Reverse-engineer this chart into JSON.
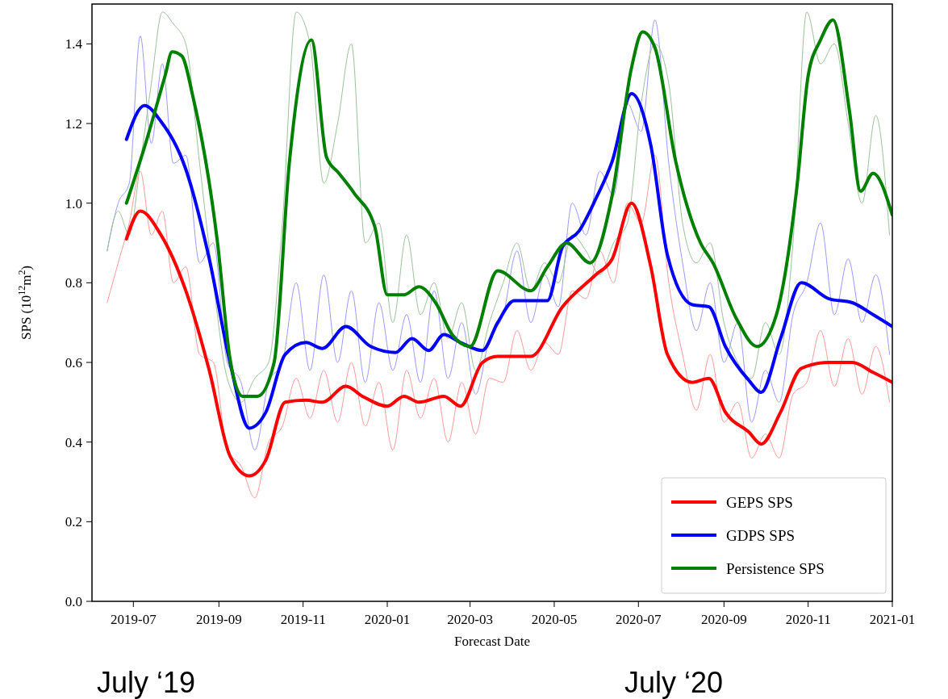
{
  "chart_data": {
    "type": "line",
    "xlabel": "Forecast Date",
    "ylabel": "SPS (10$^{12}$m$^{2}$)",
    "annotations": [
      "July ‘19",
      "July ‘20"
    ],
    "xlim": [
      "2019-06-01",
      "2021-01-01"
    ],
    "xticks": [
      "2019-07",
      "2019-09",
      "2019-11",
      "2020-01",
      "2020-03",
      "2020-05",
      "2020-07",
      "2020-09",
      "2020-11",
      "2021-01"
    ],
    "ylim": [
      0,
      1.5
    ],
    "yticks": [
      {
        "value": 0,
        "label": "0.0"
      },
      {
        "value": 0.2,
        "label": "0.2"
      },
      {
        "value": 0.4,
        "label": "0.4"
      },
      {
        "value": 0.6,
        "label": "0.6"
      },
      {
        "value": 0.8,
        "label": "0.8"
      },
      {
        "value": 1.0,
        "label": "1.0"
      },
      {
        "value": 1.2,
        "label": "1.2"
      },
      {
        "value": 1.4,
        "label": "1.4"
      }
    ],
    "grid": false,
    "legend": "bottom right",
    "line_style": "solid",
    "marker": "none",
    "x": [
      "2019-06-12",
      "2019-06-20",
      "2019-06-28",
      "2019-07-06",
      "2019-07-14",
      "2019-07-22",
      "2019-07-30",
      "2019-08-08",
      "2019-08-18",
      "2019-08-28",
      "2019-09-07",
      "2019-09-17",
      "2019-09-27",
      "2019-10-07",
      "2019-10-17",
      "2019-10-27",
      "2019-11-06",
      "2019-11-16",
      "2019-11-26",
      "2019-12-06",
      "2019-12-16",
      "2019-12-26",
      "2020-01-05",
      "2020-01-15",
      "2020-01-25",
      "2020-02-04",
      "2020-02-14",
      "2020-02-24",
      "2020-03-05",
      "2020-03-15",
      "2020-03-25",
      "2020-04-04",
      "2020-04-14",
      "2020-04-24",
      "2020-05-04",
      "2020-05-14",
      "2020-05-24",
      "2020-06-03",
      "2020-06-13",
      "2020-06-23",
      "2020-07-03",
      "2020-07-13",
      "2020-07-23",
      "2020-08-02",
      "2020-08-12",
      "2020-08-22",
      "2020-09-01",
      "2020-09-11",
      "2020-09-21",
      "2020-10-01",
      "2020-10-11",
      "2020-10-21",
      "2020-10-31",
      "2020-11-10",
      "2020-11-20",
      "2020-11-30",
      "2020-12-10",
      "2020-12-20",
      "2020-12-30"
    ],
    "series": [
      {
        "color": "#ff9a9a",
        "values": [
          0.75,
          0.85,
          0.95,
          1.08,
          0.92,
          0.98,
          0.8,
          0.84,
          0.62,
          0.6,
          0.38,
          0.34,
          0.26,
          0.4,
          0.44,
          0.56,
          0.46,
          0.58,
          0.45,
          0.6,
          0.44,
          0.55,
          0.38,
          0.58,
          0.46,
          0.56,
          0.4,
          0.55,
          0.42,
          0.56,
          0.55,
          0.68,
          0.58,
          0.65,
          0.62,
          0.78,
          0.76,
          0.88,
          0.8,
          1.0,
          0.95,
          1.12,
          0.8,
          0.62,
          0.48,
          0.62,
          0.45,
          0.5,
          0.36,
          0.42,
          0.36,
          0.52,
          0.55,
          0.68,
          0.54,
          0.66,
          0.52,
          0.64,
          0.5
        ]
      },
      {
        "color": "#9a9aff",
        "values": [
          0.88,
          1.0,
          1.05,
          1.42,
          1.15,
          1.35,
          1.1,
          1.12,
          0.85,
          0.9,
          0.6,
          0.55,
          0.38,
          0.55,
          0.6,
          0.8,
          0.58,
          0.82,
          0.6,
          0.78,
          0.55,
          0.75,
          0.58,
          0.72,
          0.55,
          0.78,
          0.56,
          0.7,
          0.52,
          0.66,
          0.72,
          0.88,
          0.7,
          0.82,
          0.74,
          1.0,
          0.92,
          1.08,
          1.02,
          1.25,
          1.18,
          1.46,
          1.1,
          0.85,
          0.68,
          0.8,
          0.6,
          0.7,
          0.45,
          0.58,
          0.5,
          0.72,
          0.8,
          0.95,
          0.72,
          0.86,
          0.7,
          0.82,
          0.62
        ]
      },
      {
        "color": "#9ac29a",
        "values": [
          0.88,
          0.98,
          0.92,
          1.1,
          1.3,
          1.48,
          1.45,
          1.4,
          1.1,
          0.8,
          0.56,
          0.5,
          0.56,
          0.6,
          0.95,
          1.48,
          1.4,
          1.05,
          1.2,
          1.4,
          0.9,
          0.95,
          0.7,
          0.92,
          0.72,
          0.8,
          0.66,
          0.75,
          0.58,
          0.7,
          0.8,
          0.9,
          0.78,
          0.85,
          0.8,
          0.92,
          0.88,
          0.82,
          0.9,
          0.95,
          1.25,
          1.4,
          1.3,
          0.95,
          0.85,
          0.9,
          0.7,
          0.6,
          0.56,
          0.7,
          0.62,
          0.9,
          1.48,
          1.35,
          1.4,
          1.2,
          1.0,
          1.22,
          0.92
        ]
      },
      {
        "name": "GEPS SPS",
        "color": "#ff0000",
        "x": [
          "2019-06-26",
          "2019-07-06",
          "2019-07-21",
          "2019-08-08",
          "2019-08-25",
          "2019-09-09",
          "2019-09-23",
          "2019-10-05",
          "2019-10-19",
          "2019-11-03",
          "2019-11-15",
          "2019-12-02",
          "2019-12-14",
          "2020-01-01",
          "2020-01-13",
          "2020-01-24",
          "2020-02-11",
          "2020-02-23",
          "2020-03-10",
          "2020-03-21",
          "2020-04-14",
          "2020-05-07",
          "2020-05-31",
          "2020-06-12",
          "2020-06-26",
          "2020-07-10",
          "2020-07-22",
          "2020-08-09",
          "2020-08-21",
          "2020-09-02",
          "2020-09-19",
          "2020-09-28",
          "2020-10-12",
          "2020-10-27",
          "2020-11-16",
          "2020-12-03",
          "2020-12-18",
          "2021-01-01"
        ],
        "values": [
          0.91,
          0.98,
          0.92,
          0.78,
          0.58,
          0.365,
          0.315,
          0.355,
          0.5,
          0.505,
          0.5,
          0.54,
          0.515,
          0.49,
          0.515,
          0.5,
          0.515,
          0.49,
          0.6,
          0.615,
          0.615,
          0.74,
          0.82,
          0.86,
          1.0,
          0.84,
          0.62,
          0.55,
          0.56,
          0.475,
          0.425,
          0.395,
          0.475,
          0.585,
          0.6,
          0.6,
          0.575,
          0.55
        ]
      },
      {
        "name": "GDPS SPS",
        "color": "#0000ff",
        "x": [
          "2019-06-26",
          "2019-07-09",
          "2019-07-21",
          "2019-08-08",
          "2019-08-25",
          "2019-09-09",
          "2019-09-23",
          "2019-10-05",
          "2019-10-19",
          "2019-11-03",
          "2019-11-15",
          "2019-12-02",
          "2019-12-20",
          "2020-01-07",
          "2020-01-19",
          "2020-01-31",
          "2020-02-11",
          "2020-02-23",
          "2020-03-10",
          "2020-03-21",
          "2020-04-02",
          "2020-04-26",
          "2020-05-07",
          "2020-05-19",
          "2020-05-31",
          "2020-06-12",
          "2020-06-26",
          "2020-07-10",
          "2020-07-22",
          "2020-08-09",
          "2020-08-21",
          "2020-09-02",
          "2020-09-19",
          "2020-09-28",
          "2020-10-12",
          "2020-10-27",
          "2020-11-16",
          "2020-12-03",
          "2020-12-18",
          "2021-01-01"
        ],
        "values": [
          1.16,
          1.245,
          1.205,
          1.085,
          0.86,
          0.6,
          0.435,
          0.475,
          0.62,
          0.65,
          0.635,
          0.69,
          0.64,
          0.625,
          0.66,
          0.63,
          0.67,
          0.65,
          0.63,
          0.7,
          0.755,
          0.755,
          0.89,
          0.93,
          1.01,
          1.105,
          1.275,
          1.145,
          0.87,
          0.745,
          0.74,
          0.64,
          0.555,
          0.525,
          0.66,
          0.8,
          0.76,
          0.75,
          0.72,
          0.69
        ]
      },
      {
        "name": "Persistence SPS",
        "color": "#008000",
        "x": [
          "2019-06-26",
          "2019-07-09",
          "2019-07-24",
          "2019-07-29",
          "2019-08-05",
          "2019-08-13",
          "2019-08-31",
          "2019-09-09",
          "2019-09-18",
          "2019-09-29",
          "2019-10-11",
          "2019-10-22",
          "2019-11-07",
          "2019-11-18",
          "2019-11-27",
          "2019-12-08",
          "2019-12-23",
          "2020-01-01",
          "2020-01-13",
          "2020-01-24",
          "2020-02-05",
          "2020-02-17",
          "2020-03-01",
          "2020-03-21",
          "2020-04-14",
          "2020-04-26",
          "2020-05-10",
          "2020-05-27",
          "2020-06-12",
          "2020-06-26",
          "2020-07-04",
          "2020-07-13",
          "2020-07-28",
          "2020-08-15",
          "2020-08-24",
          "2020-09-10",
          "2020-09-25",
          "2020-10-09",
          "2020-10-24",
          "2020-11-01",
          "2020-11-10",
          "2020-11-19",
          "2020-12-01",
          "2020-12-09",
          "2020-12-18",
          "2021-01-01"
        ],
        "values": [
          1.0,
          1.14,
          1.32,
          1.38,
          1.37,
          1.27,
          0.9,
          0.61,
          0.515,
          0.515,
          0.6,
          1.1,
          1.41,
          1.115,
          1.075,
          1.025,
          0.94,
          0.77,
          0.77,
          0.79,
          0.75,
          0.67,
          0.64,
          0.83,
          0.78,
          0.84,
          0.9,
          0.85,
          1.02,
          1.34,
          1.43,
          1.39,
          1.105,
          0.9,
          0.85,
          0.71,
          0.64,
          0.72,
          1.045,
          1.32,
          1.41,
          1.46,
          1.23,
          1.03,
          1.075,
          0.97
        ]
      }
    ]
  }
}
